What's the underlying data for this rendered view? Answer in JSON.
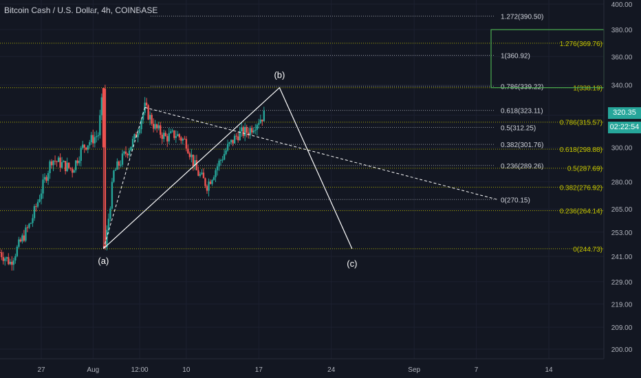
{
  "title": "Bitcoin Cash / U.S. Dollar, 4h, COINBASE",
  "current_price": "320.35",
  "timer": "02:22:54",
  "colors": {
    "background": "#131722",
    "bull": "#26a69a",
    "bear": "#ef5350",
    "fib_white": "#d1d4dc",
    "fib_yellow": "#c8c800",
    "box": "#4caf50",
    "axis_text": "#b2b5be"
  },
  "chart_data": {
    "type": "candlestick",
    "title": "Bitcoin Cash / U.S. Dollar, 4h, COINBASE",
    "y_scale": "log",
    "y_range": [
      195,
      402
    ],
    "y_ticks": [
      "400.00",
      "380.00",
      "360.00",
      "340.00",
      "320.00",
      "300.00",
      "280.00",
      "265.00",
      "253.00",
      "241.00",
      "229.00",
      "219.00",
      "209.00",
      "200.00"
    ],
    "x_range": [
      "Jul 23",
      "Sep 16"
    ],
    "x_ticks": [
      {
        "label": "27",
        "date": "2020-07-27"
      },
      {
        "label": "Aug",
        "date": "2020-08-01"
      },
      {
        "label": "12:00",
        "date": "2020-08-05T12:00"
      },
      {
        "label": "10",
        "date": "2020-08-10"
      },
      {
        "label": "17",
        "date": "2020-08-17"
      },
      {
        "label": "24",
        "date": "2020-08-24"
      },
      {
        "label": "Sep",
        "date": "2020-09-01"
      },
      {
        "label": "7",
        "date": "2020-09-07"
      },
      {
        "label": "14",
        "date": "2020-09-14"
      }
    ],
    "price_path": [
      [
        "2020-07-23",
        243
      ],
      [
        "2020-07-24",
        238
      ],
      [
        "2020-07-25",
        248
      ],
      [
        "2020-07-26",
        258
      ],
      [
        "2020-07-27",
        275
      ],
      [
        "2020-07-28",
        293
      ],
      [
        "2020-07-29",
        290
      ],
      [
        "2020-07-30",
        287
      ],
      [
        "2020-07-31",
        300
      ],
      [
        "2020-08-01T12:00",
        308
      ],
      [
        "2020-08-02",
        338
      ],
      [
        "2020-08-02T04:00",
        245
      ],
      [
        "2020-08-03",
        285
      ],
      [
        "2020-08-04",
        295
      ],
      [
        "2020-08-05",
        305
      ],
      [
        "2020-08-06",
        325
      ],
      [
        "2020-08-07",
        312
      ],
      [
        "2020-08-08",
        306
      ],
      [
        "2020-08-09",
        308
      ],
      [
        "2020-08-10",
        303
      ],
      [
        "2020-08-11",
        286
      ],
      [
        "2020-08-12",
        278
      ],
      [
        "2020-08-13",
        289
      ],
      [
        "2020-08-14",
        300
      ],
      [
        "2020-08-15",
        308
      ],
      [
        "2020-08-16",
        310
      ],
      [
        "2020-08-17",
        317
      ],
      [
        "2020-08-17T12:00",
        320
      ]
    ],
    "fib_retracement_white": [
      {
        "label": "1.272(390.50)",
        "value": 390.5,
        "line": "dotted"
      },
      {
        "label": "1(360.92)",
        "value": 360.92,
        "line": "dotted"
      },
      {
        "label": "0.786(339.22)",
        "value": 339.22,
        "line": "dotted"
      },
      {
        "label": "0.618(323.11)",
        "value": 323.11,
        "line": "dotted"
      },
      {
        "label": "0.5(312.25)",
        "value": 312.25,
        "line": "dotted"
      },
      {
        "label": "0.382(301.76)",
        "value": 301.76,
        "line": "dotted"
      },
      {
        "label": "0.236(289.26)",
        "value": 289.26,
        "line": "dotted"
      },
      {
        "label": "0(270.15)",
        "value": 270.15,
        "line": "dotted"
      }
    ],
    "fib_retracement_yellow": [
      {
        "label": "1.276(369.76)",
        "value": 369.76
      },
      {
        "label": "1(338.19)",
        "value": 338.19
      },
      {
        "label": "0.786(315.57)",
        "value": 315.57
      },
      {
        "label": "0.618(298.88)",
        "value": 298.88
      },
      {
        "label": "0.5(287.69)",
        "value": 287.69
      },
      {
        "label": "0.382(276.92)",
        "value": 276.92
      },
      {
        "label": "0.236(264.14)",
        "value": 264.14
      },
      {
        "label": "0(244.73)",
        "value": 244.73
      }
    ],
    "target_box": {
      "from": 338.19,
      "to": 380.0
    },
    "wave_labels": [
      {
        "label": "(a)",
        "date": "2020-08-02",
        "value": 244.73
      },
      {
        "label": "(b)",
        "date": "2020-08-19",
        "value": 338.19
      },
      {
        "label": "(c)",
        "date": "2020-08-26",
        "value": 244.73
      }
    ],
    "pattern_points": [
      {
        "date": "2020-08-02",
        "value": 244.73
      },
      {
        "date": "2020-08-19",
        "value": 338.19
      },
      {
        "date": "2020-08-26",
        "value": 244.73
      }
    ],
    "trendline_dashed": {
      "from": {
        "date": "2020-08-06",
        "value": 325
      },
      "to": {
        "date": "2020-09-09",
        "value": 270.15
      }
    }
  }
}
